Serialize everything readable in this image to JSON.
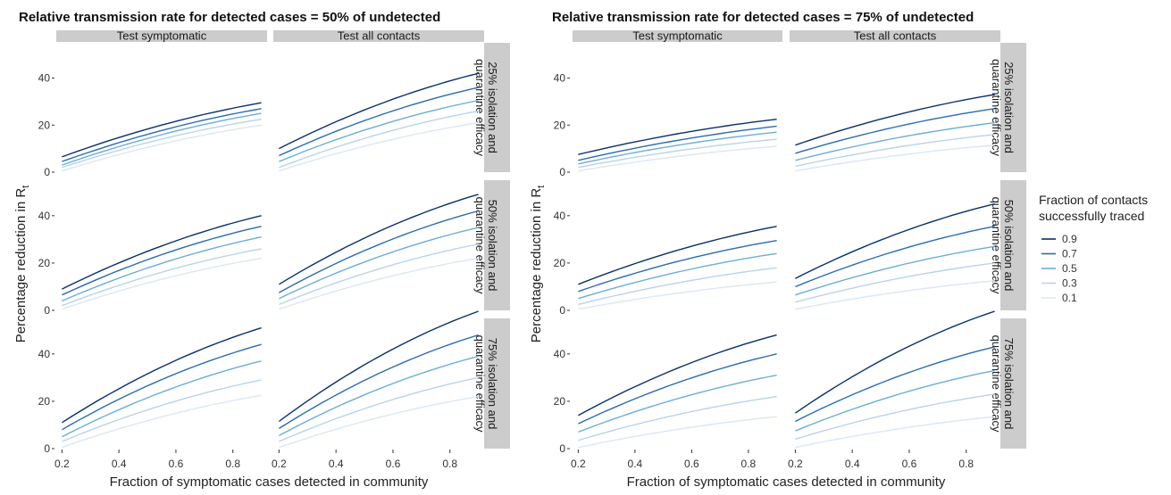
{
  "figure": {
    "left_title": "Relative transmission rate for detected cases = 50% of undetected",
    "right_title": "Relative transmission rate for detected cases = 75% of undetected",
    "ylabel_main": "Percentage reduction in R",
    "ylabel_sub": "t",
    "xlabel": "Fraction of symptomatic cases detected in community",
    "col_strips": [
      "Test symptomatic",
      "Test all contacts"
    ],
    "row_strips": [
      [
        "25% isolation and",
        "quarantine efficacy"
      ],
      [
        "50% isolation and",
        "quarantine efficacy"
      ],
      [
        "75% isolation and",
        "quarantine efficacy"
      ]
    ],
    "x_ticks": [
      "0.2",
      "0.4",
      "0.6",
      "0.8"
    ],
    "y_ticks": [
      "0",
      "20",
      "40"
    ],
    "legend": {
      "title_line1": "Fraction of contacts",
      "title_line2": "successfully traced",
      "items": [
        "0.9",
        "0.7",
        "0.5",
        "0.3",
        "0.1"
      ]
    }
  },
  "colors": {
    "series": [
      "#08306b",
      "#2a6cb0",
      "#6aaed6",
      "#b9d3ea",
      "#dbe7f4"
    ],
    "strip_bg": "#cccccc"
  },
  "chart_data": {
    "type": "line",
    "x": [
      0.2,
      0.9
    ],
    "xlim": [
      0.18,
      0.92
    ],
    "ylim": [
      0,
      55
    ],
    "series_names": [
      "0.9",
      "0.7",
      "0.5",
      "0.3",
      "0.1"
    ],
    "panels": [
      {
        "figure": "50%",
        "test": "Test symptomatic",
        "efficacy": "25%",
        "start": [
          6.5,
          4.5,
          3,
          2,
          0.5
        ],
        "end": [
          29.5,
          27,
          25,
          22.5,
          20
        ]
      },
      {
        "figure": "50%",
        "test": "Test all contacts",
        "efficacy": "25%",
        "start": [
          10,
          7,
          4.5,
          2,
          0.5
        ],
        "end": [
          42,
          36,
          30.5,
          26,
          21
        ]
      },
      {
        "figure": "50%",
        "test": "Test symptomatic",
        "efficacy": "50%",
        "start": [
          9,
          6.5,
          4,
          2,
          0.5
        ],
        "end": [
          40,
          35.5,
          31,
          26,
          22
        ]
      },
      {
        "figure": "50%",
        "test": "Test all contacts",
        "efficacy": "50%",
        "start": [
          11,
          7.5,
          5,
          2.5,
          0.5
        ],
        "end": [
          49,
          42,
          35,
          28,
          22
        ]
      },
      {
        "figure": "50%",
        "test": "Test symptomatic",
        "efficacy": "75%",
        "start": [
          11,
          8,
          5,
          3,
          0.5
        ],
        "end": [
          51,
          44,
          37,
          29,
          22.5
        ]
      },
      {
        "figure": "50%",
        "test": "Test all contacts",
        "efficacy": "75%",
        "start": [
          11.5,
          8.5,
          5.5,
          3,
          0.5
        ],
        "end": [
          58,
          48,
          39,
          30,
          22
        ]
      },
      {
        "figure": "75%",
        "test": "Test symptomatic",
        "efficacy": "25%",
        "start": [
          7.5,
          5,
          3.5,
          2,
          0.5
        ],
        "end": [
          22.5,
          19.5,
          17,
          14,
          11
        ]
      },
      {
        "figure": "75%",
        "test": "Test all contacts",
        "efficacy": "25%",
        "start": [
          11.5,
          8,
          5,
          2.5,
          0.5
        ],
        "end": [
          33,
          27,
          21,
          16,
          11.5
        ]
      },
      {
        "figure": "75%",
        "test": "Test symptomatic",
        "efficacy": "50%",
        "start": [
          11,
          8,
          5,
          2.5,
          0.5
        ],
        "end": [
          35.5,
          29.5,
          24,
          18,
          12
        ]
      },
      {
        "figure": "75%",
        "test": "Test all contacts",
        "efficacy": "50%",
        "start": [
          13.5,
          10,
          6.5,
          3.5,
          0.5
        ],
        "end": [
          45,
          35.5,
          27,
          20,
          12.5
        ]
      },
      {
        "figure": "75%",
        "test": "Test symptomatic",
        "efficacy": "75%",
        "start": [
          14,
          10.5,
          7,
          3.5,
          0.5
        ],
        "end": [
          48,
          40,
          31,
          22,
          13.5
        ]
      },
      {
        "figure": "75%",
        "test": "Test all contacts",
        "efficacy": "75%",
        "start": [
          15,
          11.5,
          7.5,
          4,
          0.5
        ],
        "end": [
          58,
          43,
          33,
          23,
          13.5
        ]
      }
    ]
  }
}
